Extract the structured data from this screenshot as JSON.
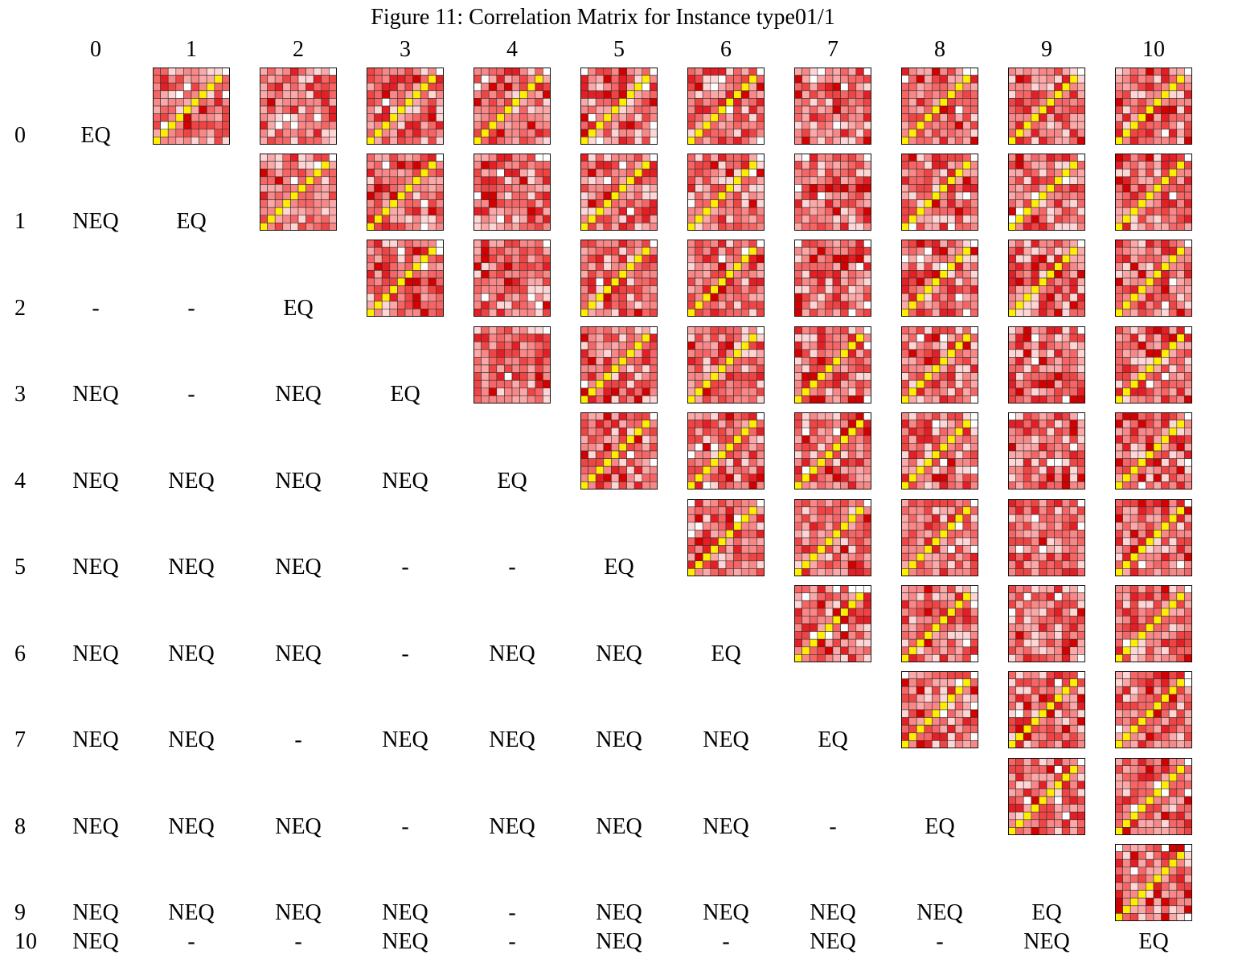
{
  "chart_data": {
    "type": "heatmap",
    "title": "Figure 11: Correlation Matrix for Instance type01/1",
    "column_labels": [
      "0",
      "1",
      "2",
      "3",
      "4",
      "5",
      "6",
      "7",
      "8",
      "9",
      "10"
    ],
    "row_labels": [
      "0",
      "1",
      "2",
      "3",
      "4",
      "5",
      "6",
      "7",
      "8",
      "9",
      "10"
    ],
    "lower_triangle": [
      [
        "EQ"
      ],
      [
        "NEQ",
        "EQ"
      ],
      [
        "-",
        "-",
        "EQ"
      ],
      [
        "NEQ",
        "-",
        "NEQ",
        "EQ"
      ],
      [
        "NEQ",
        "NEQ",
        "NEQ",
        "NEQ",
        "EQ"
      ],
      [
        "NEQ",
        "NEQ",
        "NEQ",
        "-",
        "-",
        "EQ"
      ],
      [
        "NEQ",
        "NEQ",
        "NEQ",
        "-",
        "NEQ",
        "NEQ",
        "EQ"
      ],
      [
        "NEQ",
        "NEQ",
        "-",
        "NEQ",
        "NEQ",
        "NEQ",
        "NEQ",
        "EQ"
      ],
      [
        "NEQ",
        "NEQ",
        "NEQ",
        "-",
        "NEQ",
        "NEQ",
        "NEQ",
        "-",
        "EQ"
      ],
      [
        "NEQ",
        "NEQ",
        "NEQ",
        "NEQ",
        "-",
        "NEQ",
        "NEQ",
        "NEQ",
        "NEQ",
        "EQ"
      ],
      [
        "NEQ",
        "-",
        "-",
        "NEQ",
        "-",
        "NEQ",
        "-",
        "NEQ",
        "-",
        "NEQ",
        "EQ"
      ]
    ],
    "upper_triangle_cells": "10x10 correlation heatmaps (shades of red, diagonal highlighted in yellow)",
    "mini_grid_size": 10,
    "colors": {
      "diagonal": "#ffee00",
      "red_levels": [
        "#ffffff",
        "#ffd6d6",
        "#fba8a8",
        "#f88888",
        "#f56565",
        "#ef4444",
        "#e31e24",
        "#d40000"
      ],
      "grid_line": "#333333"
    }
  }
}
